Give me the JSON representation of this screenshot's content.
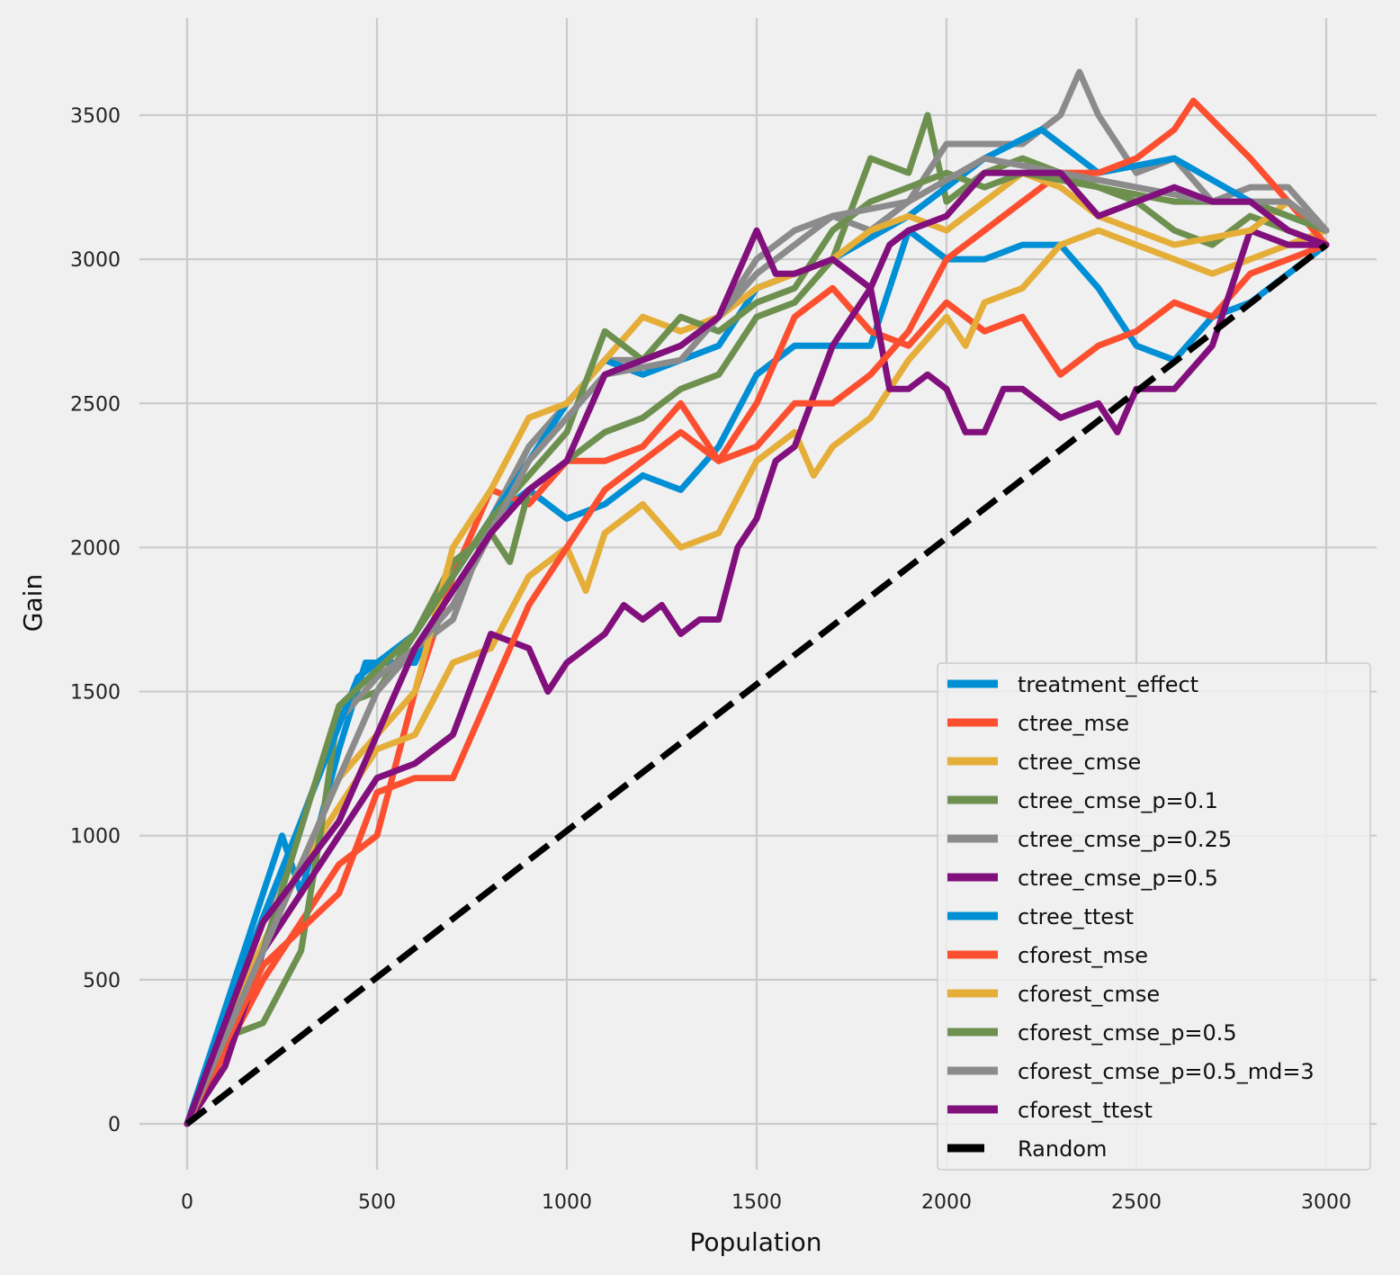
{
  "chart_data": {
    "type": "line",
    "title": "",
    "xlabel": "Population",
    "ylabel": "Gain",
    "xlim": [
      -120,
      3120
    ],
    "ylim": [
      -170,
      3840
    ],
    "xticks": [
      0,
      500,
      1000,
      1500,
      2000,
      2500,
      3000
    ],
    "yticks": [
      0,
      500,
      1000,
      1500,
      2000,
      2500,
      3000,
      3500
    ],
    "grid": true,
    "legend_position": "lower-right",
    "background": "#f0f0f0",
    "grid_color": "#cbcbcb",
    "series": [
      {
        "name": "treatment_effect",
        "color": "#008fd5",
        "x": [
          0,
          100,
          200,
          250,
          300,
          400,
          470,
          600,
          700,
          800,
          900,
          1000,
          1100,
          1200,
          1300,
          1400,
          1500,
          1600,
          1700,
          1800,
          1900,
          2000,
          2100,
          2200,
          2300,
          2400,
          2500,
          2600,
          2700,
          2800,
          2900,
          3000
        ],
        "y": [
          0,
          400,
          800,
          1000,
          800,
          1300,
          1600,
          1600,
          1900,
          2100,
          2200,
          2100,
          2150,
          2250,
          2200,
          2350,
          2600,
          2700,
          2700,
          2700,
          3100,
          3000,
          3000,
          3050,
          3050,
          2900,
          2700,
          2650,
          2800,
          2850,
          2950,
          3050
        ]
      },
      {
        "name": "ctree_mse",
        "color": "#fc4f30",
        "x": [
          0,
          200,
          400,
          500,
          600,
          700,
          800,
          900,
          1000,
          1100,
          1200,
          1300,
          1400,
          1500,
          1600,
          1700,
          1800,
          1900,
          2000,
          2100,
          2200,
          2300,
          2400,
          2500,
          2600,
          2700,
          2800,
          3000
        ],
        "y": [
          0,
          500,
          900,
          1000,
          1500,
          1900,
          2200,
          2150,
          2300,
          2300,
          2350,
          2500,
          2300,
          2500,
          2800,
          2900,
          2750,
          2700,
          2850,
          2750,
          2800,
          2600,
          2700,
          2750,
          2850,
          2800,
          2950,
          3050
        ]
      },
      {
        "name": "ctree_cmse",
        "color": "#e5ae38",
        "x": [
          0,
          100,
          300,
          500,
          600,
          700,
          800,
          900,
          1000,
          1050,
          1100,
          1200,
          1300,
          1400,
          1500,
          1600,
          1650,
          1700,
          1800,
          1900,
          2000,
          2050,
          2100,
          2200,
          2300,
          2400,
          2500,
          2600,
          2700,
          2800,
          3000
        ],
        "y": [
          0,
          350,
          900,
          1300,
          1350,
          1600,
          1650,
          1900,
          2000,
          1850,
          2050,
          2150,
          2000,
          2050,
          2300,
          2400,
          2250,
          2350,
          2450,
          2650,
          2800,
          2700,
          2850,
          2900,
          3050,
          3100,
          3050,
          3000,
          2950,
          3000,
          3100
        ]
      },
      {
        "name": "ctree_cmse_p=0.1",
        "color": "#6d904f",
        "x": [
          0,
          100,
          200,
          300,
          350,
          400,
          500,
          600,
          700,
          800,
          850,
          900,
          1000,
          1100,
          1200,
          1300,
          1400,
          1500,
          1600,
          1700,
          1800,
          1900,
          1950,
          2000,
          2100,
          2200,
          2300,
          2400,
          2500,
          2600,
          2700,
          2800,
          3000
        ],
        "y": [
          0,
          300,
          350,
          600,
          1000,
          1450,
          1500,
          1700,
          1950,
          2050,
          1950,
          2200,
          2300,
          2400,
          2450,
          2550,
          2600,
          2800,
          2850,
          3000,
          3350,
          3300,
          3500,
          3200,
          3300,
          3350,
          3300,
          3250,
          3200,
          3100,
          3050,
          3150,
          3050
        ]
      },
      {
        "name": "ctree_cmse_p=0.25",
        "color": "#8b8b8b",
        "x": [
          0,
          200,
          400,
          500,
          600,
          700,
          800,
          900,
          1000,
          1100,
          1200,
          1300,
          1400,
          1500,
          1600,
          1700,
          1800,
          1900,
          2000,
          2100,
          2200,
          2300,
          2350,
          2400,
          2500,
          2600,
          2700,
          2800,
          2900,
          3000
        ],
        "y": [
          0,
          700,
          1400,
          1550,
          1650,
          1750,
          2100,
          2350,
          2500,
          2650,
          2650,
          2700,
          2800,
          3000,
          3100,
          3150,
          3100,
          3200,
          3400,
          3400,
          3400,
          3500,
          3650,
          3500,
          3300,
          3350,
          3200,
          3250,
          3250,
          3100
        ]
      },
      {
        "name": "ctree_cmse_p=0.5",
        "color": "#810f7c",
        "x": [
          0,
          100,
          200,
          300,
          400,
          500,
          600,
          700,
          800,
          900,
          950,
          1000,
          1100,
          1150,
          1200,
          1250,
          1300,
          1350,
          1400,
          1450,
          1500,
          1550,
          1600,
          1700,
          1800,
          1850,
          1900,
          1950,
          2000,
          2050,
          2100,
          2150,
          2200,
          2300,
          2400,
          2450,
          2500,
          2600,
          2700,
          2800,
          2900,
          3000
        ],
        "y": [
          0,
          200,
          600,
          800,
          1000,
          1200,
          1250,
          1350,
          1700,
          1650,
          1500,
          1600,
          1700,
          1800,
          1750,
          1800,
          1700,
          1750,
          1750,
          2000,
          2100,
          2300,
          2350,
          2700,
          2900,
          2550,
          2550,
          2600,
          2550,
          2400,
          2400,
          2550,
          2550,
          2450,
          2500,
          2400,
          2550,
          2550,
          2700,
          3100,
          3050,
          3050
        ]
      },
      {
        "name": "ctree_ttest",
        "color": "#008fd5",
        "x": [
          0,
          150,
          300,
          450,
          600,
          800,
          1000,
          1100,
          1200,
          1400,
          1500,
          1700,
          1900,
          2000,
          2100,
          2250,
          2400,
          2600,
          2800,
          3000
        ],
        "y": [
          0,
          550,
          1050,
          1550,
          1700,
          2100,
          2500,
          2650,
          2600,
          2700,
          2900,
          3000,
          3150,
          3250,
          3350,
          3450,
          3300,
          3350,
          3200,
          3100
        ]
      },
      {
        "name": "cforest_mse",
        "color": "#fc4f30",
        "x": [
          0,
          200,
          400,
          500,
          600,
          700,
          800,
          900,
          1000,
          1100,
          1200,
          1300,
          1400,
          1500,
          1600,
          1700,
          1800,
          1900,
          2000,
          2100,
          2200,
          2300,
          2400,
          2500,
          2600,
          2650,
          2800,
          3000
        ],
        "y": [
          0,
          550,
          800,
          1150,
          1200,
          1200,
          1500,
          1800,
          2000,
          2200,
          2300,
          2400,
          2300,
          2350,
          2500,
          2500,
          2600,
          2750,
          3000,
          3100,
          3200,
          3300,
          3300,
          3350,
          3450,
          3550,
          3350,
          3050
        ]
      },
      {
        "name": "cforest_cmse",
        "color": "#e5ae38",
        "x": [
          0,
          200,
          400,
          600,
          700,
          800,
          900,
          1000,
          1100,
          1200,
          1300,
          1400,
          1500,
          1600,
          1700,
          1800,
          1900,
          2000,
          2100,
          2200,
          2300,
          2400,
          2500,
          2600,
          2800,
          2900,
          3000
        ],
        "y": [
          0,
          600,
          1200,
          1500,
          2000,
          2200,
          2450,
          2500,
          2650,
          2800,
          2750,
          2800,
          2900,
          2950,
          3000,
          3100,
          3150,
          3100,
          3200,
          3300,
          3250,
          3150,
          3100,
          3050,
          3100,
          3200,
          3100
        ]
      },
      {
        "name": "cforest_cmse_p=0.5",
        "color": "#6d904f",
        "x": [
          0,
          200,
          400,
          600,
          800,
          1000,
          1100,
          1200,
          1300,
          1400,
          1500,
          1600,
          1700,
          1800,
          1900,
          2000,
          2100,
          2200,
          2400,
          2600,
          2800,
          3000
        ],
        "y": [
          0,
          600,
          1450,
          1700,
          2100,
          2400,
          2750,
          2650,
          2800,
          2750,
          2850,
          2900,
          3100,
          3200,
          3250,
          3300,
          3250,
          3300,
          3250,
          3200,
          3200,
          3100
        ]
      },
      {
        "name": "cforest_cmse_p=0.5_md=3",
        "color": "#8b8b8b",
        "x": [
          0,
          300,
          500,
          700,
          900,
          1100,
          1300,
          1500,
          1700,
          1900,
          2100,
          2300,
          2500,
          2700,
          2900,
          3000
        ],
        "y": [
          0,
          900,
          1500,
          1800,
          2300,
          2600,
          2650,
          2950,
          3150,
          3200,
          3350,
          3300,
          3250,
          3200,
          3200,
          3100
        ]
      },
      {
        "name": "cforest_ttest",
        "color": "#810f7c",
        "x": [
          0,
          200,
          400,
          500,
          600,
          700,
          800,
          900,
          1000,
          1100,
          1200,
          1300,
          1400,
          1450,
          1500,
          1550,
          1600,
          1700,
          1800,
          1850,
          1900,
          2000,
          2100,
          2200,
          2300,
          2400,
          2500,
          2600,
          2700,
          2800,
          2900,
          3000
        ],
        "y": [
          0,
          700,
          1050,
          1350,
          1650,
          1850,
          2050,
          2200,
          2300,
          2600,
          2650,
          2700,
          2800,
          2950,
          3100,
          2950,
          2950,
          3000,
          2900,
          3050,
          3100,
          3150,
          3300,
          3300,
          3300,
          3150,
          3200,
          3250,
          3200,
          3200,
          3100,
          3050
        ]
      },
      {
        "name": "Random",
        "color": "#000000",
        "dashed": true,
        "x": [
          0,
          3000
        ],
        "y": [
          0,
          3050
        ]
      }
    ]
  }
}
